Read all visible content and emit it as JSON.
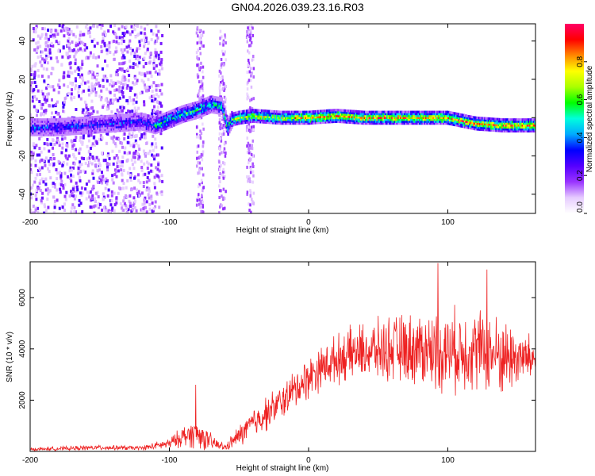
{
  "figure": {
    "title": "GN04.2026.039.23.16.R03"
  },
  "chart_data": [
    {
      "type": "heatmap",
      "xlabel": "Height of straight line (km)",
      "ylabel": "Frequency (Hz)",
      "xlim": [
        -200,
        163
      ],
      "ylim": [
        -50,
        49
      ],
      "xticks": [
        -200,
        -100,
        0,
        100
      ],
      "yticks": [
        -40,
        -20,
        0,
        20,
        40
      ],
      "colorbar": {
        "label": "Normalized spectral amplitude",
        "range": [
          0,
          1
        ],
        "ticks": [
          "0.0",
          "0.2",
          "0.4",
          "0.6",
          "0.8"
        ],
        "tick_values": [
          0,
          0.2,
          0.4,
          0.6,
          0.8
        ],
        "colors": [
          "#ffffff",
          "#e6ccff",
          "#9933ff",
          "#5500ff",
          "#0000ff",
          "#00aaff",
          "#00ffdd",
          "#00ff00",
          "#aaff00",
          "#ffff00",
          "#ff8800",
          "#ff0000",
          "#ff0066"
        ]
      },
      "ridge": {
        "x": [
          -200,
          -180,
          -160,
          -140,
          -120,
          -110,
          -100,
          -90,
          -80,
          -70,
          -62,
          -58,
          -55,
          -50,
          -40,
          -20,
          0,
          20,
          40,
          60,
          80,
          100,
          120,
          140,
          163
        ],
        "freq": [
          -5,
          -5,
          -4,
          -3,
          -2,
          -4,
          -1,
          2,
          4,
          7,
          6,
          -5,
          -1,
          0,
          1,
          0,
          0,
          1,
          0,
          0,
          0,
          0,
          -3,
          -4,
          -4
        ]
      }
    },
    {
      "type": "line",
      "xlabel": "Height of straight line (km)",
      "ylabel": "SNR (10 * v/v)",
      "xlim": [
        -200,
        163
      ],
      "ylim": [
        0,
        7400
      ],
      "xticks": [
        -200,
        -100,
        0,
        100
      ],
      "yticks": [
        2000,
        4000,
        6000
      ],
      "series": [
        {
          "name": "SNR",
          "color": "#ee2222",
          "envelope_x": [
            -200,
            -150,
            -120,
            -100,
            -90,
            -80,
            -70,
            -60,
            -50,
            -40,
            -30,
            -20,
            -10,
            0,
            10,
            20,
            30,
            40,
            60,
            80,
            100,
            120,
            140,
            163
          ],
          "envelope_mean": [
            80,
            150,
            130,
            300,
            600,
            700,
            350,
            150,
            600,
            1100,
            1500,
            1900,
            2400,
            2900,
            3300,
            3600,
            3800,
            3900,
            4000,
            4000,
            3900,
            4000,
            3700,
            3600
          ],
          "envelope_amp": [
            70,
            120,
            100,
            250,
            500,
            700,
            400,
            150,
            500,
            700,
            800,
            800,
            900,
            1000,
            1000,
            1100,
            1200,
            1300,
            1500,
            1700,
            1900,
            1900,
            1800,
            1000
          ]
        }
      ],
      "peaks": {
        "x": [
          -81,
          93,
          128
        ],
        "y": [
          2600,
          7350,
          7100
        ]
      }
    }
  ]
}
